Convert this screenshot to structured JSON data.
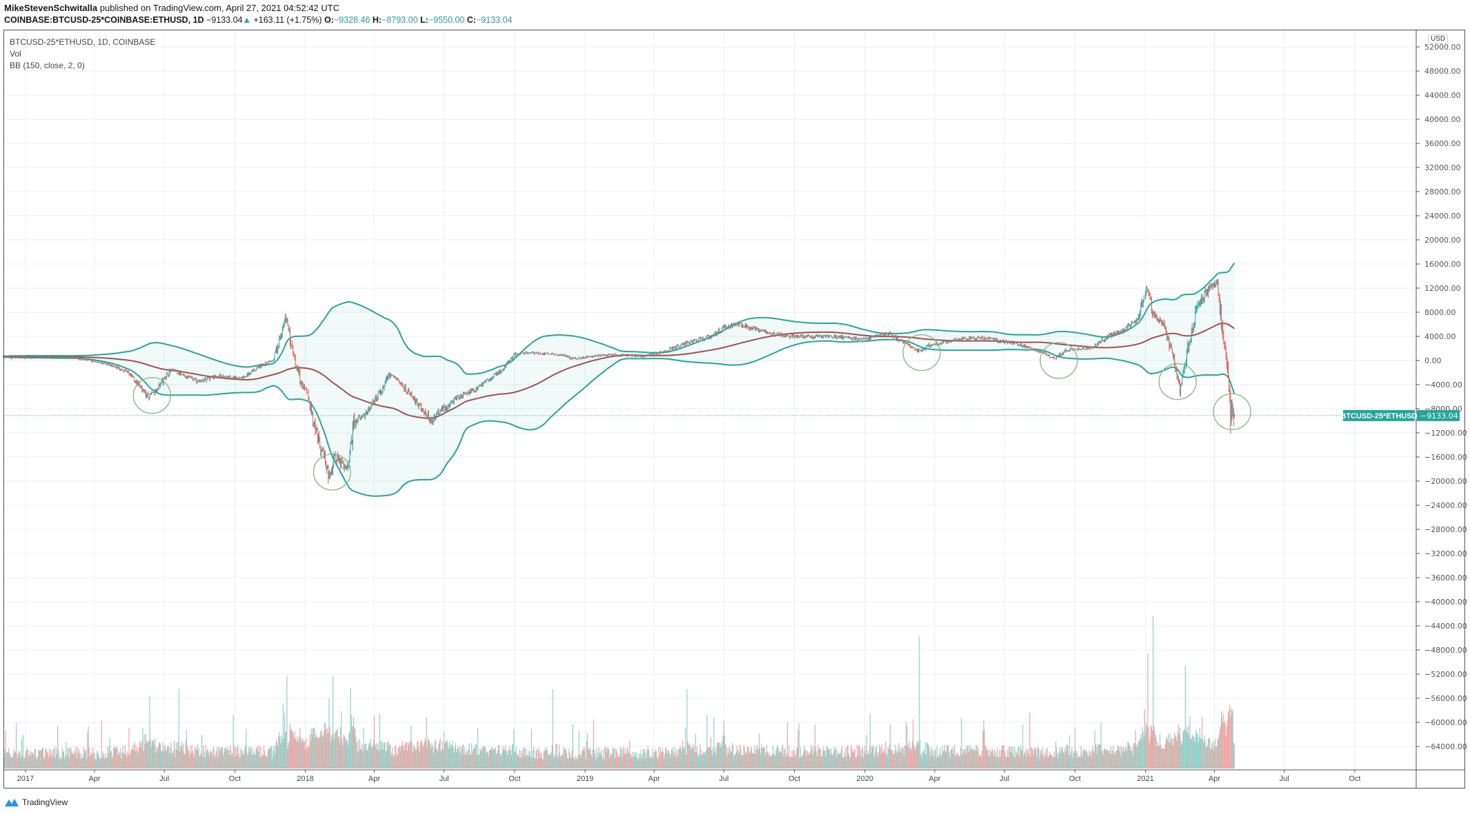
{
  "header": {
    "author": "MikeStevenSchwitalla",
    "published": "published on TradingView.com, April 27, 2021 04:52:42 UTC",
    "symbol": "COINBASE:BTCUSD-25*COINBASE:ETHUSD, 1D",
    "last": "−9133.04",
    "change": "+163.11 (+1.75%)",
    "o_label": "O:",
    "o": "−9328.46",
    "h_label": "H:",
    "h": "−8793.00",
    "l_label": "L:",
    "l": "−9550.00",
    "c_label": "C:",
    "c": "−9133.04"
  },
  "legend": {
    "series": "BTCUSD-25*ETHUSD, 1D, COINBASE",
    "volume": "Vol",
    "bb": "BB (150, close, 2, 0)"
  },
  "currency": "USD",
  "price_label": {
    "name": "BTCUSD-25*ETHUSD",
    "value": "−9133.04"
  },
  "footer": {
    "brand": "TradingView"
  },
  "colors": {
    "up": "#26a69a",
    "down": "#ef5350",
    "basis": "#a0504f",
    "band": "#26a69a",
    "annotation": "#81b97a"
  },
  "chart_data": {
    "type": "candlestick",
    "title": "BTCUSD-25*ETHUSD, 1D, COINBASE",
    "ylabel": "USD",
    "ylim": [
      -66000,
      54000
    ],
    "yticks": [
      "52000.00",
      "48000.00",
      "44000.00",
      "40000.00",
      "36000.00",
      "32000.00",
      "28000.00",
      "24000.00",
      "20000.00",
      "16000.00",
      "12000.00",
      "8000.00",
      "4000.00",
      "0.00",
      "−4000.00",
      "−8000.00",
      "−12000.00",
      "−16000.00",
      "−20000.00",
      "−24000.00",
      "−28000.00",
      "−32000.00",
      "−36000.00",
      "−40000.00",
      "−44000.00",
      "−48000.00",
      "−52000.00",
      "−56000.00",
      "−60000.00",
      "−64000.00"
    ],
    "ytick_values": [
      52000,
      48000,
      44000,
      40000,
      36000,
      32000,
      28000,
      24000,
      20000,
      16000,
      12000,
      8000,
      4000,
      0,
      -4000,
      -8000,
      -12000,
      -16000,
      -20000,
      -24000,
      -28000,
      -32000,
      -36000,
      -40000,
      -44000,
      -48000,
      -52000,
      -56000,
      -60000,
      -64000
    ],
    "xticks": [
      {
        "label": "2017",
        "date": "2017-01-01"
      },
      {
        "label": "Apr",
        "date": "2017-04-01"
      },
      {
        "label": "Jul",
        "date": "2017-07-01"
      },
      {
        "label": "Oct",
        "date": "2017-10-01"
      },
      {
        "label": "2018",
        "date": "2018-01-01"
      },
      {
        "label": "Apr",
        "date": "2018-04-01"
      },
      {
        "label": "Jul",
        "date": "2018-07-01"
      },
      {
        "label": "Oct",
        "date": "2018-10-01"
      },
      {
        "label": "2019",
        "date": "2019-01-01"
      },
      {
        "label": "Apr",
        "date": "2019-04-01"
      },
      {
        "label": "Jul",
        "date": "2019-07-01"
      },
      {
        "label": "Oct",
        "date": "2019-10-01"
      },
      {
        "label": "2020",
        "date": "2020-01-01"
      },
      {
        "label": "Apr",
        "date": "2020-04-01"
      },
      {
        "label": "Jul",
        "date": "2020-07-01"
      },
      {
        "label": "Oct",
        "date": "2020-10-01"
      },
      {
        "label": "2021",
        "date": "2021-01-01"
      },
      {
        "label": "Apr",
        "date": "2021-04-01"
      },
      {
        "label": "Jul",
        "date": "2021-07-01"
      },
      {
        "label": "Oct",
        "date": "2021-10-01"
      }
    ],
    "close_path": [
      [
        "2016-12-01",
        500
      ],
      [
        "2017-01-01",
        500
      ],
      [
        "2017-03-01",
        600
      ],
      [
        "2017-04-15",
        -500
      ],
      [
        "2017-05-15",
        -2000
      ],
      [
        "2017-06-10",
        -6000
      ],
      [
        "2017-06-20",
        -5000
      ],
      [
        "2017-07-10",
        -1500
      ],
      [
        "2017-08-15",
        -3500
      ],
      [
        "2017-09-10",
        -2500
      ],
      [
        "2017-10-10",
        -3000
      ],
      [
        "2017-11-01",
        -1000
      ],
      [
        "2017-11-20",
        0
      ],
      [
        "2017-12-07",
        7000
      ],
      [
        "2017-12-15",
        2000
      ],
      [
        "2017-12-25",
        -3000
      ],
      [
        "2018-01-05",
        -6000
      ],
      [
        "2018-01-15",
        -12000
      ],
      [
        "2018-02-01",
        -19000
      ],
      [
        "2018-02-10",
        -16000
      ],
      [
        "2018-02-25",
        -18000
      ],
      [
        "2018-03-05",
        -10000
      ],
      [
        "2018-03-20",
        -9000
      ],
      [
        "2018-04-10",
        -5000
      ],
      [
        "2018-04-20",
        -2500
      ],
      [
        "2018-05-01",
        -3000
      ],
      [
        "2018-05-20",
        -6000
      ],
      [
        "2018-06-15",
        -10000
      ],
      [
        "2018-06-25",
        -8500
      ],
      [
        "2018-07-20",
        -6000
      ],
      [
        "2018-08-15",
        -4500
      ],
      [
        "2018-09-15",
        -1500
      ],
      [
        "2018-10-01",
        1000
      ],
      [
        "2018-10-15",
        1300
      ],
      [
        "2018-12-01",
        1000
      ],
      [
        "2018-12-15",
        300
      ],
      [
        "2019-02-01",
        1000
      ],
      [
        "2019-03-15",
        700
      ],
      [
        "2019-04-15",
        1500
      ],
      [
        "2019-05-15",
        3000
      ],
      [
        "2019-06-15",
        4000
      ],
      [
        "2019-07-01",
        5500
      ],
      [
        "2019-07-20",
        6000
      ],
      [
        "2019-08-15",
        5000
      ],
      [
        "2019-09-20",
        4000
      ],
      [
        "2019-11-15",
        4000
      ],
      [
        "2019-12-31",
        3500
      ],
      [
        "2020-02-01",
        4500
      ],
      [
        "2020-03-12",
        1500
      ],
      [
        "2020-03-25",
        2500
      ],
      [
        "2020-05-01",
        3500
      ],
      [
        "2020-06-01",
        3800
      ],
      [
        "2020-07-15",
        2800
      ],
      [
        "2020-08-15",
        1500
      ],
      [
        "2020-09-05",
        300
      ],
      [
        "2020-09-20",
        1700
      ],
      [
        "2020-10-20",
        2000
      ],
      [
        "2020-11-15",
        4000
      ],
      [
        "2020-12-01",
        5000
      ],
      [
        "2020-12-20",
        6500
      ],
      [
        "2021-01-03",
        12000
      ],
      [
        "2021-01-10",
        8000
      ],
      [
        "2021-01-25",
        6000
      ],
      [
        "2021-02-05",
        1000
      ],
      [
        "2021-02-15",
        -5000
      ],
      [
        "2021-02-25",
        2000
      ],
      [
        "2021-03-10",
        9000
      ],
      [
        "2021-03-25",
        12000
      ],
      [
        "2021-04-05",
        13000
      ],
      [
        "2021-04-10",
        6000
      ],
      [
        "2021-04-15",
        2000
      ],
      [
        "2021-04-20",
        -4000
      ],
      [
        "2021-04-22",
        -10000
      ],
      [
        "2021-04-26",
        -9296
      ],
      [
        "2021-04-27",
        -9133.04
      ]
    ],
    "last_bar": {
      "date": "2021-04-27",
      "open": -9328.46,
      "high": -8793.0,
      "low": -9550.0,
      "close": -9133.04
    },
    "indicator": {
      "name": "BB",
      "length": 150,
      "source": "close",
      "stdev": 2,
      "offset": 0
    },
    "volume_spikes": [
      [
        "2017-06-12",
        0.55
      ],
      [
        "2017-07-20",
        0.6
      ],
      [
        "2017-12-08",
        0.7
      ],
      [
        "2018-02-06",
        0.7
      ],
      [
        "2018-11-20",
        0.6
      ],
      [
        "2019-05-14",
        0.6
      ],
      [
        "2020-03-12",
        1.0
      ],
      [
        "2021-01-04",
        0.85
      ],
      [
        "2021-01-11",
        1.15
      ],
      [
        "2021-02-22",
        0.78
      ],
      [
        "2021-04-23",
        0.45
      ]
    ],
    "annotations": [
      {
        "type": "circle",
        "date": "2017-06-15",
        "value": -5800
      },
      {
        "type": "circle",
        "date": "2018-02-05",
        "value": -18500
      },
      {
        "type": "circle",
        "date": "2020-03-15",
        "value": 1300
      },
      {
        "type": "circle",
        "date": "2020-09-10",
        "value": 0
      },
      {
        "type": "circle",
        "date": "2021-02-12",
        "value": -3500
      },
      {
        "type": "circle",
        "date": "2021-04-24",
        "value": -8500
      }
    ]
  }
}
